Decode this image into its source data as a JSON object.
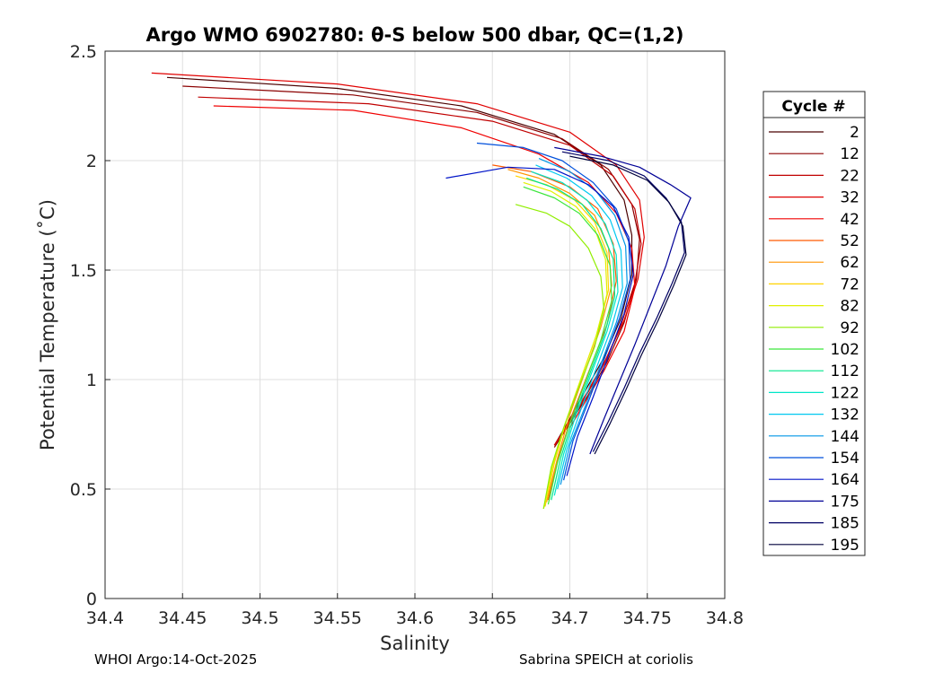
{
  "chart_data": {
    "type": "line",
    "title": "Argo WMO 6902780: θ-S below 500 dbar,  QC=(1,2)",
    "xlabel": "Salinity",
    "ylabel": "Potential Temperature (˚C)",
    "xlim": [
      34.4,
      34.8
    ],
    "ylim": [
      0,
      2.5
    ],
    "xticks": [
      "34.4",
      "34.45",
      "34.5",
      "34.55",
      "34.6",
      "34.65",
      "34.7",
      "34.75",
      "34.8"
    ],
    "yticks": [
      "0",
      "0.5",
      "1",
      "1.5",
      "2",
      "2.5"
    ],
    "grid": true,
    "legend": {
      "title": "Cycle #",
      "placement": "right-outside",
      "entries": [
        "2",
        "12",
        "22",
        "32",
        "42",
        "52",
        "62",
        "72",
        "82",
        "92",
        "102",
        "112",
        "122",
        "132",
        "144",
        "154",
        "164",
        "175",
        "185",
        "195"
      ]
    },
    "series": [
      {
        "name": "2",
        "color": "#4a0000",
        "x": [
          34.44,
          34.55,
          34.63,
          34.69,
          34.72,
          34.735,
          34.74,
          34.74,
          34.733,
          34.722,
          34.71,
          34.7,
          34.69
        ],
        "y": [
          2.38,
          2.33,
          2.25,
          2.12,
          1.98,
          1.82,
          1.66,
          1.48,
          1.28,
          1.1,
          0.95,
          0.82,
          0.7
        ]
      },
      {
        "name": "12",
        "color": "#8b0000",
        "x": [
          34.45,
          34.56,
          34.64,
          34.695,
          34.725,
          34.74,
          34.745,
          34.743,
          34.735,
          34.724,
          34.712,
          34.7,
          34.69
        ],
        "y": [
          2.34,
          2.3,
          2.22,
          2.1,
          1.96,
          1.8,
          1.64,
          1.46,
          1.26,
          1.08,
          0.93,
          0.8,
          0.69
        ]
      },
      {
        "name": "22",
        "color": "#c00000",
        "x": [
          34.46,
          34.57,
          34.65,
          34.7,
          34.728,
          34.742,
          34.746,
          34.742,
          34.733,
          34.722,
          34.71,
          34.7,
          34.69
        ],
        "y": [
          2.29,
          2.26,
          2.18,
          2.07,
          1.93,
          1.78,
          1.62,
          1.44,
          1.25,
          1.07,
          0.92,
          0.8,
          0.7
        ]
      },
      {
        "name": "32",
        "color": "#e00000",
        "x": [
          34.43,
          34.55,
          34.64,
          34.7,
          34.73,
          34.745,
          34.748,
          34.744,
          34.735,
          34.723,
          34.711,
          34.7,
          34.69
        ],
        "y": [
          2.4,
          2.35,
          2.26,
          2.13,
          1.98,
          1.82,
          1.65,
          1.46,
          1.27,
          1.09,
          0.94,
          0.81,
          0.7
        ]
      },
      {
        "name": "42",
        "color": "#f00000",
        "x": [
          34.47,
          34.56,
          34.63,
          34.68,
          34.712,
          34.73,
          34.74,
          34.742,
          34.735,
          34.722,
          34.71,
          34.7
        ],
        "y": [
          2.25,
          2.23,
          2.15,
          2.03,
          1.9,
          1.76,
          1.6,
          1.42,
          1.22,
          1.04,
          0.9,
          0.78
        ]
      },
      {
        "name": "52",
        "color": "#ff5a00",
        "x": [
          34.65,
          34.675,
          34.7,
          34.718,
          34.728,
          34.73,
          34.724,
          34.713,
          34.702,
          34.693,
          34.686
        ],
        "y": [
          1.98,
          1.95,
          1.88,
          1.78,
          1.62,
          1.45,
          1.25,
          1.05,
          0.85,
          0.65,
          0.45
        ]
      },
      {
        "name": "62",
        "color": "#ff9400",
        "x": [
          34.66,
          34.68,
          34.7,
          34.716,
          34.725,
          34.727,
          34.72,
          34.71,
          34.7,
          34.692,
          34.685
        ],
        "y": [
          1.96,
          1.92,
          1.85,
          1.75,
          1.6,
          1.43,
          1.24,
          1.04,
          0.84,
          0.64,
          0.44
        ]
      },
      {
        "name": "72",
        "color": "#ffd200",
        "x": [
          34.665,
          34.685,
          34.703,
          34.716,
          34.724,
          34.725,
          34.718,
          34.708,
          34.698,
          34.69,
          34.684
        ],
        "y": [
          1.93,
          1.89,
          1.82,
          1.72,
          1.58,
          1.41,
          1.22,
          1.02,
          0.82,
          0.62,
          0.42
        ]
      },
      {
        "name": "82",
        "color": "#e0f000",
        "x": [
          34.67,
          34.688,
          34.704,
          34.716,
          34.723,
          34.724,
          34.717,
          34.707,
          34.697,
          34.689,
          34.683
        ],
        "y": [
          1.9,
          1.86,
          1.79,
          1.69,
          1.55,
          1.39,
          1.2,
          1.0,
          0.8,
          0.61,
          0.41
        ]
      },
      {
        "name": "92",
        "color": "#90ee00",
        "x": [
          34.665,
          34.685,
          34.7,
          34.712,
          34.72,
          34.722,
          34.716,
          34.706,
          34.696,
          34.688,
          34.683
        ],
        "y": [
          1.8,
          1.76,
          1.7,
          1.6,
          1.47,
          1.32,
          1.15,
          0.97,
          0.78,
          0.6,
          0.41
        ]
      },
      {
        "name": "102",
        "color": "#3ce63c",
        "x": [
          34.67,
          34.69,
          34.706,
          34.718,
          34.726,
          34.727,
          34.72,
          34.71,
          34.7,
          34.692,
          34.686
        ],
        "y": [
          1.88,
          1.83,
          1.76,
          1.66,
          1.52,
          1.36,
          1.18,
          0.99,
          0.8,
          0.62,
          0.43
        ]
      },
      {
        "name": "112",
        "color": "#00e68c",
        "x": [
          34.672,
          34.692,
          34.708,
          34.72,
          34.728,
          34.729,
          34.722,
          34.712,
          34.702,
          34.694,
          34.688
        ],
        "y": [
          1.92,
          1.87,
          1.8,
          1.69,
          1.55,
          1.38,
          1.2,
          1.01,
          0.82,
          0.64,
          0.45
        ]
      },
      {
        "name": "122",
        "color": "#00e6c8",
        "x": [
          34.675,
          34.695,
          34.711,
          34.723,
          34.73,
          34.731,
          34.724,
          34.714,
          34.704,
          34.696,
          34.69
        ],
        "y": [
          1.95,
          1.9,
          1.82,
          1.71,
          1.57,
          1.4,
          1.22,
          1.03,
          0.84,
          0.66,
          0.47
        ]
      },
      {
        "name": "132",
        "color": "#00c8f0",
        "x": [
          34.678,
          34.698,
          34.714,
          34.726,
          34.733,
          34.734,
          34.727,
          34.717,
          34.707,
          34.698,
          34.692
        ],
        "y": [
          1.98,
          1.92,
          1.84,
          1.73,
          1.59,
          1.42,
          1.24,
          1.05,
          0.86,
          0.68,
          0.5
        ]
      },
      {
        "name": "144",
        "color": "#0096e6",
        "x": [
          34.68,
          34.7,
          34.717,
          34.729,
          34.736,
          34.737,
          34.73,
          34.72,
          34.71,
          34.7,
          34.694
        ],
        "y": [
          2.01,
          1.95,
          1.86,
          1.75,
          1.61,
          1.44,
          1.26,
          1.07,
          0.88,
          0.7,
          0.52
        ]
      },
      {
        "name": "154",
        "color": "#0050dc",
        "x": [
          34.64,
          34.67,
          34.695,
          34.715,
          34.73,
          34.738,
          34.739,
          34.732,
          34.722,
          34.712,
          34.702,
          34.696
        ],
        "y": [
          2.08,
          2.06,
          2.0,
          1.9,
          1.78,
          1.63,
          1.46,
          1.28,
          1.09,
          0.9,
          0.72,
          0.54
        ]
      },
      {
        "name": "164",
        "color": "#0014c8",
        "x": [
          34.62,
          34.66,
          34.69,
          34.712,
          34.728,
          34.738,
          34.741,
          34.735,
          34.725,
          34.715,
          34.705,
          34.698
        ],
        "y": [
          1.92,
          1.97,
          1.96,
          1.89,
          1.79,
          1.65,
          1.48,
          1.3,
          1.11,
          0.92,
          0.74,
          0.56
        ]
      },
      {
        "name": "175",
        "color": "#000096",
        "x": [
          34.69,
          34.72,
          34.745,
          34.765,
          34.778,
          34.77,
          34.762,
          34.752,
          34.742,
          34.732,
          34.722,
          34.713
        ],
        "y": [
          2.06,
          2.02,
          1.97,
          1.89,
          1.83,
          1.7,
          1.52,
          1.34,
          1.16,
          0.99,
          0.82,
          0.66
        ]
      },
      {
        "name": "185",
        "color": "#000064",
        "x": [
          34.695,
          34.725,
          34.748,
          34.762,
          34.772,
          34.774,
          34.766,
          34.756,
          34.745,
          34.735,
          34.725,
          34.715
        ],
        "y": [
          2.04,
          2.0,
          1.93,
          1.83,
          1.72,
          1.58,
          1.44,
          1.28,
          1.12,
          0.96,
          0.81,
          0.67
        ]
      },
      {
        "name": "195",
        "color": "#00003c",
        "x": [
          34.7,
          34.728,
          34.75,
          34.764,
          34.773,
          34.775,
          34.767,
          34.757,
          34.746,
          34.736,
          34.726,
          34.716
        ],
        "y": [
          2.02,
          1.98,
          1.91,
          1.81,
          1.7,
          1.57,
          1.43,
          1.27,
          1.11,
          0.95,
          0.8,
          0.66
        ]
      }
    ]
  },
  "footer": {
    "left": "WHOI Argo:14-Oct-2025",
    "right": "Sabrina SPEICH at coriolis"
  }
}
